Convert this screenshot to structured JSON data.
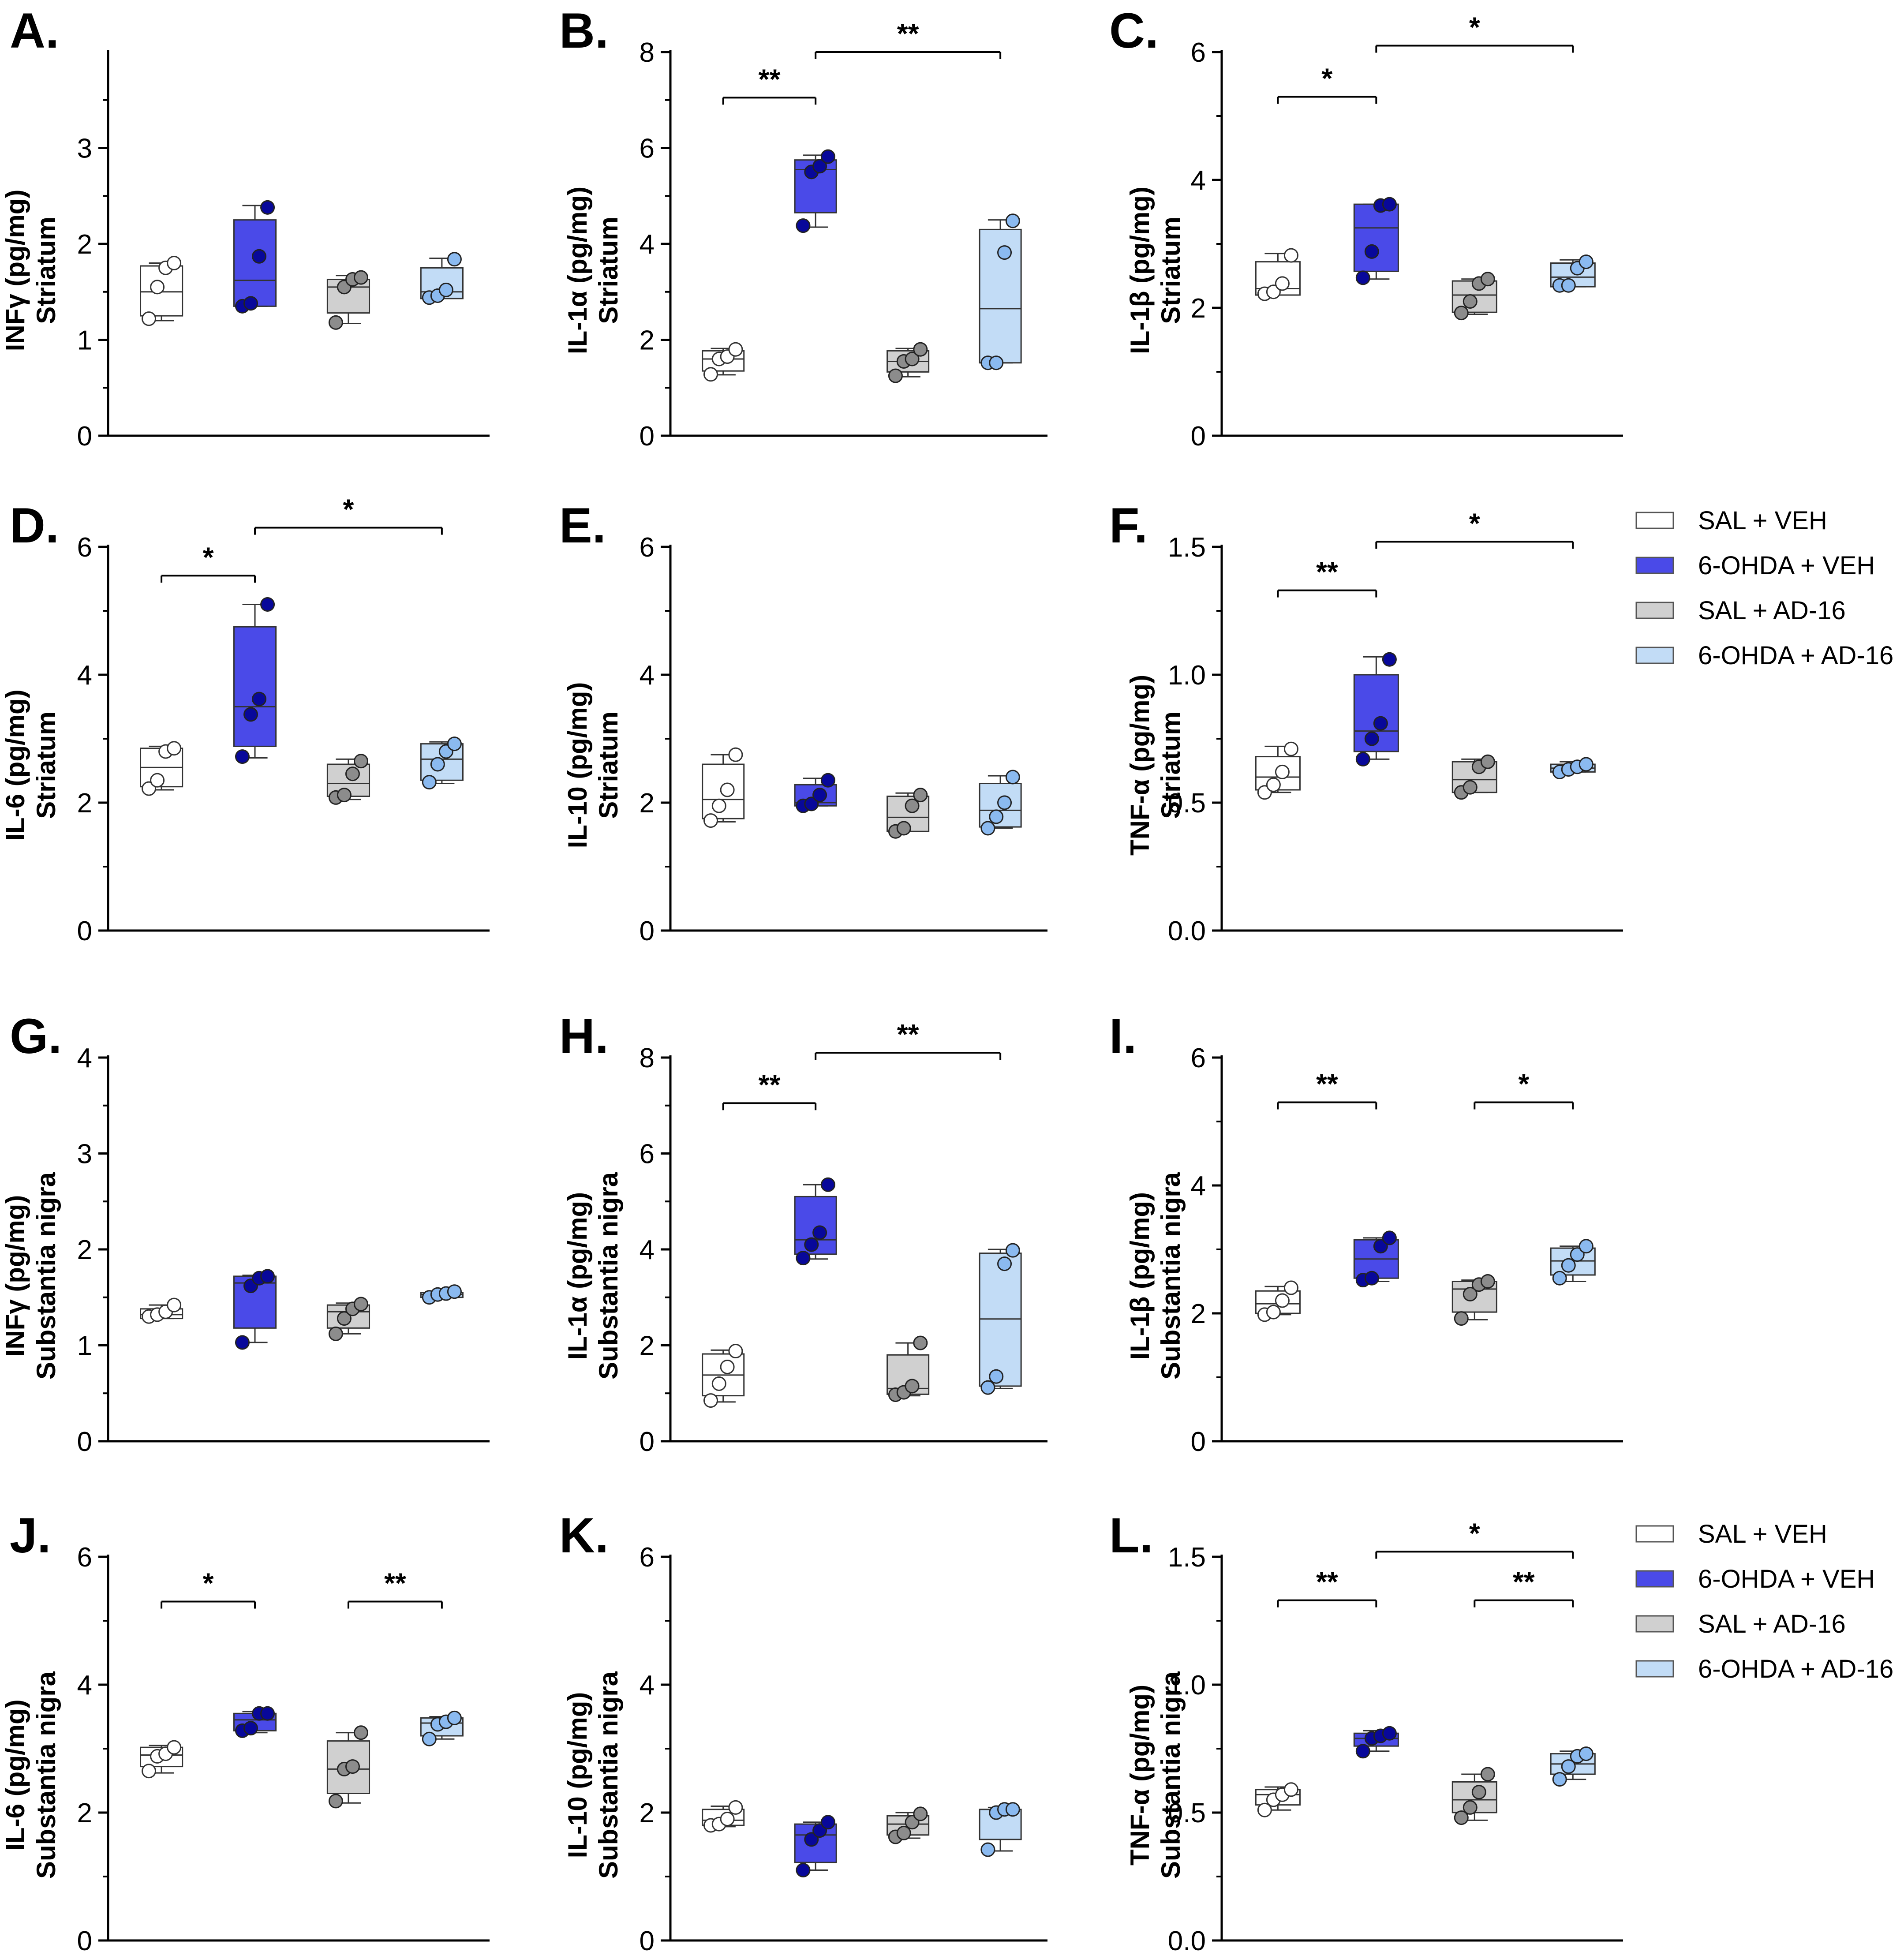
{
  "legend": [
    {
      "label": "SAL + VEH",
      "color": "#ffffff",
      "dot": "#ffffff"
    },
    {
      "label": "6-OHDA + VEH",
      "color": "#4a4ae8",
      "dot": "#08089a"
    },
    {
      "label": "SAL + AD-16",
      "color": "#d0d0d0",
      "dot": "#8c8c8c"
    },
    {
      "label": "6-OHDA + AD-16",
      "color": "#c2dcf6",
      "dot": "#8bbaf0"
    }
  ],
  "chart_data": [
    {
      "type": "box",
      "panel": "A.",
      "ylabel": [
        "INFγ (pg/mg)",
        "Striatum"
      ],
      "ylim": [
        0,
        4
      ],
      "yticks": [
        "0",
        "1",
        "2",
        "3"
      ],
      "tick_values": [
        0,
        1,
        2,
        3
      ],
      "series": [
        {
          "name": "SAL + VEH",
          "min": 1.2,
          "q1": 1.25,
          "median": 1.5,
          "q3": 1.77,
          "max": 1.8,
          "points": [
            1.22,
            1.55,
            1.75,
            1.8
          ]
        },
        {
          "name": "6-OHDA + VEH",
          "min": 1.35,
          "q1": 1.35,
          "median": 1.62,
          "q3": 2.25,
          "max": 2.4,
          "points": [
            1.35,
            1.38,
            1.87,
            2.38
          ]
        },
        {
          "name": "SAL + AD-16",
          "min": 1.17,
          "q1": 1.28,
          "median": 1.55,
          "q3": 1.63,
          "max": 1.67,
          "points": [
            1.18,
            1.55,
            1.63,
            1.65
          ]
        },
        {
          "name": "6-OHDA + AD-16",
          "min": 1.43,
          "q1": 1.43,
          "median": 1.5,
          "q3": 1.75,
          "max": 1.85,
          "points": [
            1.44,
            1.46,
            1.52,
            1.84
          ]
        }
      ],
      "sig": []
    },
    {
      "type": "box",
      "panel": "B.",
      "ylabel": [
        "IL-1α (pg/mg)",
        "Striatum"
      ],
      "ylim": [
        0,
        8
      ],
      "yticks": [
        "0",
        "2",
        "4",
        "6",
        "8"
      ],
      "tick_values": [
        0,
        2,
        4,
        6,
        8
      ],
      "series": [
        {
          "name": "SAL + VEH",
          "min": 1.27,
          "q1": 1.35,
          "median": 1.6,
          "q3": 1.77,
          "max": 1.82,
          "points": [
            1.28,
            1.6,
            1.65,
            1.8
          ]
        },
        {
          "name": "6-OHDA + VEH",
          "min": 4.35,
          "q1": 4.65,
          "median": 5.55,
          "q3": 5.75,
          "max": 5.85,
          "points": [
            4.38,
            5.5,
            5.62,
            5.82
          ]
        },
        {
          "name": "SAL + AD-16",
          "min": 1.23,
          "q1": 1.33,
          "median": 1.55,
          "q3": 1.77,
          "max": 1.82,
          "points": [
            1.25,
            1.55,
            1.6,
            1.8
          ]
        },
        {
          "name": "6-OHDA + AD-16",
          "min": 1.52,
          "q1": 1.52,
          "median": 2.65,
          "q3": 4.3,
          "max": 4.5,
          "points": [
            1.52,
            1.52,
            3.82,
            4.48
          ]
        }
      ],
      "sig": [
        {
          "from": 0,
          "to": 1,
          "y": 7.05,
          "label": "**"
        },
        {
          "from": 1,
          "to": 3,
          "y": 8.0,
          "label": "**"
        }
      ]
    },
    {
      "type": "box",
      "panel": "C.",
      "ylabel": [
        "IL-1β (pg/mg)",
        "Striatum"
      ],
      "ylim": [
        0,
        6
      ],
      "yticks": [
        "0",
        "2",
        "4",
        "6"
      ],
      "tick_values": [
        0,
        2,
        4,
        6
      ],
      "series": [
        {
          "name": "SAL + VEH",
          "min": 2.2,
          "q1": 2.2,
          "median": 2.3,
          "q3": 2.72,
          "max": 2.85,
          "points": [
            2.22,
            2.25,
            2.38,
            2.82
          ]
        },
        {
          "name": "6-OHDA + VEH",
          "min": 2.45,
          "q1": 2.57,
          "median": 3.25,
          "q3": 3.62,
          "max": 3.62,
          "points": [
            2.47,
            2.88,
            3.6,
            3.62
          ]
        },
        {
          "name": "SAL + AD-16",
          "min": 1.9,
          "q1": 1.93,
          "median": 2.2,
          "q3": 2.42,
          "max": 2.45,
          "points": [
            1.92,
            2.1,
            2.38,
            2.45
          ]
        },
        {
          "name": "6-OHDA + AD-16",
          "min": 2.33,
          "q1": 2.33,
          "median": 2.48,
          "q3": 2.7,
          "max": 2.75,
          "points": [
            2.35,
            2.35,
            2.62,
            2.72
          ]
        }
      ],
      "sig": [
        {
          "from": 0,
          "to": 1,
          "y": 5.3,
          "label": "*"
        },
        {
          "from": 1,
          "to": 3,
          "y": 6.1,
          "label": "*"
        }
      ]
    },
    {
      "type": "box",
      "panel": "D.",
      "ylabel": [
        "IL-6 (pg/mg)",
        "Striatum"
      ],
      "ylim": [
        0,
        6
      ],
      "yticks": [
        "0",
        "2",
        "4",
        "6"
      ],
      "tick_values": [
        0,
        2,
        4,
        6
      ],
      "series": [
        {
          "name": "SAL + VEH",
          "min": 2.2,
          "q1": 2.25,
          "median": 2.55,
          "q3": 2.85,
          "max": 2.88,
          "points": [
            2.22,
            2.35,
            2.8,
            2.85
          ]
        },
        {
          "name": "6-OHDA + VEH",
          "min": 2.7,
          "q1": 2.88,
          "median": 3.5,
          "q3": 4.75,
          "max": 5.1,
          "points": [
            2.72,
            3.38,
            3.62,
            5.1
          ]
        },
        {
          "name": "SAL + AD-16",
          "min": 2.05,
          "q1": 2.1,
          "median": 2.3,
          "q3": 2.6,
          "max": 2.68,
          "points": [
            2.08,
            2.12,
            2.45,
            2.65
          ]
        },
        {
          "name": "6-OHDA + AD-16",
          "min": 2.3,
          "q1": 2.35,
          "median": 2.68,
          "q3": 2.92,
          "max": 2.95,
          "points": [
            2.32,
            2.6,
            2.8,
            2.92
          ]
        }
      ],
      "sig": [
        {
          "from": 0,
          "to": 1,
          "y": 5.55,
          "label": "*"
        },
        {
          "from": 1,
          "to": 3,
          "y": 6.3,
          "label": "*"
        }
      ]
    },
    {
      "type": "box",
      "panel": "E.",
      "ylabel": [
        "IL-10 (pg/mg)",
        "Striatum"
      ],
      "ylim": [
        0,
        6
      ],
      "yticks": [
        "0",
        "2",
        "4",
        "6"
      ],
      "tick_values": [
        0,
        2,
        4,
        6
      ],
      "series": [
        {
          "name": "SAL + VEH",
          "min": 1.7,
          "q1": 1.75,
          "median": 2.05,
          "q3": 2.6,
          "max": 2.75,
          "points": [
            1.72,
            1.95,
            2.2,
            2.75
          ]
        },
        {
          "name": "6-OHDA + VEH",
          "min": 1.95,
          "q1": 1.95,
          "median": 2.0,
          "q3": 2.28,
          "max": 2.38,
          "points": [
            1.95,
            1.98,
            2.12,
            2.35
          ]
        },
        {
          "name": "SAL + AD-16",
          "min": 1.55,
          "q1": 1.55,
          "median": 1.77,
          "q3": 2.1,
          "max": 2.15,
          "points": [
            1.55,
            1.6,
            1.95,
            2.12
          ]
        },
        {
          "name": "6-OHDA + AD-16",
          "min": 1.6,
          "q1": 1.62,
          "median": 1.88,
          "q3": 2.3,
          "max": 2.42,
          "points": [
            1.6,
            1.78,
            2.0,
            2.4
          ]
        }
      ],
      "sig": []
    },
    {
      "type": "box",
      "panel": "F.",
      "ylabel": [
        "TNF-α (pg/mg)",
        "Striatum"
      ],
      "ylim": [
        0,
        1.5
      ],
      "yticks": [
        "0.0",
        "0.5",
        "1.0",
        "1.5"
      ],
      "tick_values": [
        0,
        0.5,
        1.0,
        1.5
      ],
      "series": [
        {
          "name": "SAL + VEH",
          "min": 0.54,
          "q1": 0.55,
          "median": 0.6,
          "q3": 0.68,
          "max": 0.72,
          "points": [
            0.54,
            0.57,
            0.62,
            0.71
          ]
        },
        {
          "name": "6-OHDA + VEH",
          "min": 0.67,
          "q1": 0.7,
          "median": 0.78,
          "q3": 1.0,
          "max": 1.07,
          "points": [
            0.67,
            0.75,
            0.81,
            1.06
          ]
        },
        {
          "name": "SAL + AD-16",
          "min": 0.54,
          "q1": 0.54,
          "median": 0.59,
          "q3": 0.66,
          "max": 0.67,
          "points": [
            0.54,
            0.56,
            0.64,
            0.66
          ]
        },
        {
          "name": "6-OHDA + AD-16",
          "min": 0.62,
          "q1": 0.62,
          "median": 0.635,
          "q3": 0.65,
          "max": 0.66,
          "points": [
            0.62,
            0.63,
            0.64,
            0.65
          ]
        }
      ],
      "sig": [
        {
          "from": 0,
          "to": 1,
          "y": 1.33,
          "label": "**"
        },
        {
          "from": 1,
          "to": 3,
          "y": 1.52,
          "label": "*"
        }
      ]
    },
    {
      "type": "box",
      "panel": "G.",
      "ylabel": [
        "INFγ (pg/mg)",
        "Substantia nigra"
      ],
      "ylim": [
        0,
        4
      ],
      "yticks": [
        "0",
        "1",
        "2",
        "3",
        "4"
      ],
      "tick_values": [
        0,
        1,
        2,
        3,
        4
      ],
      "series": [
        {
          "name": "SAL + VEH",
          "min": 1.28,
          "q1": 1.28,
          "median": 1.32,
          "q3": 1.38,
          "max": 1.42,
          "points": [
            1.3,
            1.32,
            1.35,
            1.42
          ]
        },
        {
          "name": "6-OHDA + VEH",
          "min": 1.03,
          "q1": 1.18,
          "median": 1.65,
          "q3": 1.72,
          "max": 1.73,
          "points": [
            1.03,
            1.62,
            1.7,
            1.72
          ]
        },
        {
          "name": "SAL + AD-16",
          "min": 1.12,
          "q1": 1.18,
          "median": 1.35,
          "q3": 1.42,
          "max": 1.44,
          "points": [
            1.12,
            1.28,
            1.38,
            1.43
          ]
        },
        {
          "name": "6-OHDA + AD-16",
          "min": 1.5,
          "q1": 1.5,
          "median": 1.53,
          "q3": 1.55,
          "max": 1.56,
          "points": [
            1.5,
            1.53,
            1.54,
            1.56
          ]
        }
      ],
      "sig": []
    },
    {
      "type": "box",
      "panel": "H.",
      "ylabel": [
        "IL-1α (pg/mg)",
        "Substantia nigra"
      ],
      "ylim": [
        0,
        8
      ],
      "yticks": [
        "0",
        "2",
        "4",
        "6",
        "8"
      ],
      "tick_values": [
        0,
        2,
        4,
        6,
        8
      ],
      "series": [
        {
          "name": "SAL + VEH",
          "min": 0.82,
          "q1": 0.95,
          "median": 1.38,
          "q3": 1.82,
          "max": 1.9,
          "points": [
            0.85,
            1.2,
            1.55,
            1.88
          ]
        },
        {
          "name": "6-OHDA + VEH",
          "min": 3.8,
          "q1": 3.9,
          "median": 4.2,
          "q3": 5.1,
          "max": 5.35,
          "points": [
            3.82,
            4.1,
            4.35,
            5.35
          ]
        },
        {
          "name": "SAL + AD-16",
          "min": 0.95,
          "q1": 0.98,
          "median": 1.1,
          "q3": 1.8,
          "max": 2.05,
          "points": [
            0.97,
            1.02,
            1.15,
            2.05
          ]
        },
        {
          "name": "6-OHDA + AD-16",
          "min": 1.1,
          "q1": 1.15,
          "median": 2.55,
          "q3": 3.92,
          "max": 4.0,
          "points": [
            1.12,
            1.35,
            3.7,
            3.98
          ]
        }
      ],
      "sig": [
        {
          "from": 0,
          "to": 1,
          "y": 7.05,
          "label": "**"
        },
        {
          "from": 1,
          "to": 3,
          "y": 8.1,
          "label": "**"
        }
      ]
    },
    {
      "type": "box",
      "panel": "I.",
      "ylabel": [
        "IL-1β (pg/mg)",
        "Substantia nigra"
      ],
      "ylim": [
        0,
        6
      ],
      "yticks": [
        "0",
        "2",
        "4",
        "6"
      ],
      "tick_values": [
        0,
        2,
        4,
        6
      ],
      "series": [
        {
          "name": "SAL + VEH",
          "min": 1.98,
          "q1": 2.0,
          "median": 2.15,
          "q3": 2.35,
          "max": 2.42,
          "points": [
            1.98,
            2.02,
            2.2,
            2.4
          ]
        },
        {
          "name": "6-OHDA + VEH",
          "min": 2.5,
          "q1": 2.55,
          "median": 2.85,
          "q3": 3.15,
          "max": 3.18,
          "points": [
            2.52,
            2.55,
            3.05,
            3.18
          ]
        },
        {
          "name": "SAL + AD-16",
          "min": 1.9,
          "q1": 2.02,
          "median": 2.38,
          "q3": 2.5,
          "max": 2.52,
          "points": [
            1.92,
            2.3,
            2.45,
            2.5
          ]
        },
        {
          "name": "6-OHDA + AD-16",
          "min": 2.5,
          "q1": 2.6,
          "median": 2.82,
          "q3": 3.02,
          "max": 3.05,
          "points": [
            2.55,
            2.75,
            2.92,
            3.05
          ]
        }
      ],
      "sig": [
        {
          "from": 0,
          "to": 1,
          "y": 5.3,
          "label": "**"
        },
        {
          "from": 2,
          "to": 3,
          "y": 5.3,
          "label": "*"
        }
      ]
    },
    {
      "type": "box",
      "panel": "J.",
      "ylabel": [
        "IL-6 (pg/mg)",
        "Substantia nigra"
      ],
      "ylim": [
        0,
        6
      ],
      "yticks": [
        "0",
        "2",
        "4",
        "6"
      ],
      "tick_values": [
        0,
        2,
        4,
        6
      ],
      "series": [
        {
          "name": "SAL + VEH",
          "min": 2.62,
          "q1": 2.72,
          "median": 2.9,
          "q3": 3.02,
          "max": 3.05,
          "points": [
            2.65,
            2.88,
            2.92,
            3.02
          ]
        },
        {
          "name": "6-OHDA + VEH",
          "min": 3.25,
          "q1": 3.28,
          "median": 3.45,
          "q3": 3.55,
          "max": 3.58,
          "points": [
            3.28,
            3.32,
            3.55,
            3.55
          ]
        },
        {
          "name": "SAL + AD-16",
          "min": 2.15,
          "q1": 2.3,
          "median": 2.68,
          "q3": 3.12,
          "max": 3.25,
          "points": [
            2.18,
            2.68,
            2.72,
            3.25
          ]
        },
        {
          "name": "6-OHDA + AD-16",
          "min": 3.15,
          "q1": 3.2,
          "median": 3.4,
          "q3": 3.48,
          "max": 3.5,
          "points": [
            3.15,
            3.38,
            3.42,
            3.48
          ]
        }
      ],
      "sig": [
        {
          "from": 0,
          "to": 1,
          "y": 5.3,
          "label": "*"
        },
        {
          "from": 2,
          "to": 3,
          "y": 5.3,
          "label": "**"
        }
      ]
    },
    {
      "type": "box",
      "panel": "K.",
      "ylabel": [
        "IL-10 (pg/mg)",
        "Substantia nigra"
      ],
      "ylim": [
        0,
        6
      ],
      "yticks": [
        "0",
        "2",
        "4",
        "6"
      ],
      "tick_values": [
        0,
        2,
        4,
        6
      ],
      "series": [
        {
          "name": "SAL + VEH",
          "min": 1.78,
          "q1": 1.8,
          "median": 1.88,
          "q3": 2.05,
          "max": 2.1,
          "points": [
            1.8,
            1.82,
            1.9,
            2.08
          ]
        },
        {
          "name": "6-OHDA + VEH",
          "min": 1.1,
          "q1": 1.22,
          "median": 1.65,
          "q3": 1.82,
          "max": 1.85,
          "points": [
            1.1,
            1.58,
            1.72,
            1.85
          ]
        },
        {
          "name": "SAL + AD-16",
          "min": 1.6,
          "q1": 1.65,
          "median": 1.82,
          "q3": 1.95,
          "max": 2.0,
          "points": [
            1.62,
            1.68,
            1.85,
            1.98
          ]
        },
        {
          "name": "6-OHDA + AD-16",
          "min": 1.4,
          "q1": 1.58,
          "median": 2.05,
          "q3": 2.05,
          "max": 2.08,
          "points": [
            1.42,
            2.0,
            2.05,
            2.05
          ]
        }
      ],
      "sig": []
    },
    {
      "type": "box",
      "panel": "L.",
      "ylabel": [
        "TNF-α (pg/mg)",
        "Substantia nigra"
      ],
      "ylim": [
        0,
        1.5
      ],
      "yticks": [
        "0.0",
        "0.5",
        "1.0",
        "1.5"
      ],
      "tick_values": [
        0,
        0.5,
        1.0,
        1.5
      ],
      "series": [
        {
          "name": "SAL + VEH",
          "min": 0.51,
          "q1": 0.53,
          "median": 0.57,
          "q3": 0.59,
          "max": 0.6,
          "points": [
            0.51,
            0.55,
            0.57,
            0.59
          ]
        },
        {
          "name": "6-OHDA + VEH",
          "min": 0.74,
          "q1": 0.76,
          "median": 0.79,
          "q3": 0.81,
          "max": 0.82,
          "points": [
            0.74,
            0.79,
            0.8,
            0.81
          ]
        },
        {
          "name": "SAL + AD-16",
          "min": 0.47,
          "q1": 0.5,
          "median": 0.55,
          "q3": 0.62,
          "max": 0.65,
          "points": [
            0.48,
            0.52,
            0.58,
            0.65
          ]
        },
        {
          "name": "6-OHDA + AD-16",
          "min": 0.63,
          "q1": 0.65,
          "median": 0.69,
          "q3": 0.73,
          "max": 0.74,
          "points": [
            0.63,
            0.68,
            0.72,
            0.73
          ]
        }
      ],
      "sig": [
        {
          "from": 0,
          "to": 1,
          "y": 1.33,
          "label": "**"
        },
        {
          "from": 2,
          "to": 3,
          "y": 1.33,
          "label": "**"
        },
        {
          "from": 1,
          "to": 3,
          "y": 1.52,
          "label": "*"
        }
      ]
    }
  ]
}
